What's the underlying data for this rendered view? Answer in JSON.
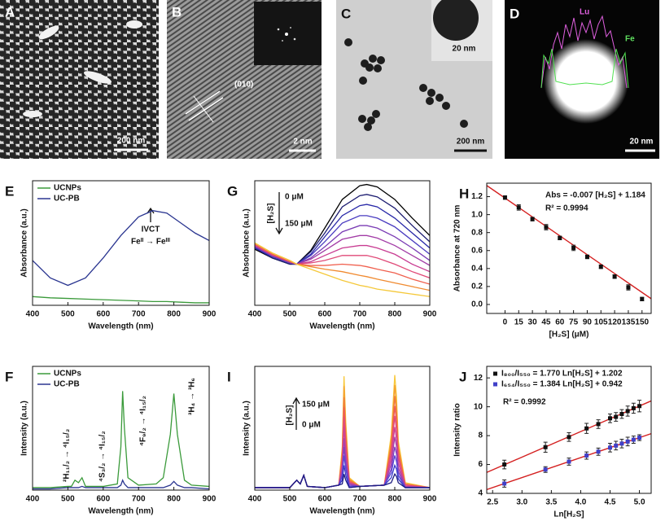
{
  "images": [
    {
      "label": "A",
      "scale": "200 nm"
    },
    {
      "label": "B",
      "scale": "2 nm",
      "annotation": "(010)"
    },
    {
      "label": "C",
      "scale": "200 nm",
      "inset_scale": "20 nm"
    },
    {
      "label": "D",
      "scale": "20 nm",
      "lines": [
        "Lu",
        "Fe"
      ]
    }
  ],
  "chart_data": [
    {
      "type": "line",
      "panel": "E",
      "xlabel": "Wavelength (nm)",
      "ylabel": "Absorbance (a.u.)",
      "xlim": [
        400,
        900
      ],
      "xticks": [
        400,
        500,
        600,
        700,
        800,
        900
      ],
      "ylim": [
        0,
        1
      ],
      "legend": "upper left",
      "annotations": [
        "IVCT",
        "Feᴵᴵ → Feᴵᴵᴵ"
      ],
      "x": [
        400,
        450,
        500,
        550,
        600,
        650,
        700,
        740,
        780,
        820,
        860,
        900
      ],
      "series": [
        {
          "name": "UCNPs",
          "color": "#3a9a3a",
          "values": [
            0.07,
            0.06,
            0.055,
            0.05,
            0.045,
            0.04,
            0.035,
            0.03,
            0.03,
            0.025,
            0.02,
            0.02
          ]
        },
        {
          "name": "UC-PB",
          "color": "#2a3590",
          "values": [
            0.36,
            0.22,
            0.16,
            0.22,
            0.38,
            0.56,
            0.71,
            0.76,
            0.74,
            0.66,
            0.58,
            0.52
          ]
        }
      ]
    },
    {
      "type": "line",
      "panel": "F",
      "xlabel": "Wavelength (nm)",
      "ylabel": "Intensity (a.u.)",
      "xlim": [
        400,
        900
      ],
      "xticks": [
        400,
        500,
        600,
        700,
        800,
        900
      ],
      "ylim": [
        0,
        1
      ],
      "legend": "upper left",
      "annotations": [
        "²H₁₁/₂ → ⁴I₁₅/₂",
        "⁴S₃/₂ → ⁴I₁₅/₂",
        "⁴F₉/₂ → ⁴I₁₅/₂",
        "³H₄ → ³H₆"
      ],
      "x": [
        400,
        450,
        500,
        510,
        520,
        530,
        540,
        550,
        560,
        600,
        640,
        650,
        655,
        660,
        670,
        700,
        750,
        770,
        790,
        800,
        810,
        830,
        850,
        900
      ],
      "series": [
        {
          "name": "UCNPs",
          "color": "#3a9a3a",
          "values": [
            0.02,
            0.02,
            0.03,
            0.03,
            0.08,
            0.06,
            0.1,
            0.03,
            0.03,
            0.03,
            0.05,
            0.35,
            0.8,
            0.5,
            0.1,
            0.04,
            0.05,
            0.1,
            0.45,
            0.78,
            0.45,
            0.08,
            0.04,
            0.03
          ]
        },
        {
          "name": "UC-PB",
          "color": "#2a3590",
          "values": [
            0.01,
            0.01,
            0.02,
            0.02,
            0.02,
            0.02,
            0.03,
            0.02,
            0.02,
            0.02,
            0.02,
            0.04,
            0.08,
            0.05,
            0.02,
            0.02,
            0.02,
            0.02,
            0.04,
            0.07,
            0.04,
            0.02,
            0.02,
            0.01
          ]
        }
      ]
    },
    {
      "type": "line",
      "panel": "G",
      "xlabel": "Wavelength (nm)",
      "ylabel": "Absorbance (a.u.)",
      "xlim": [
        400,
        900
      ],
      "xticks": [
        400,
        500,
        600,
        700,
        800,
        900
      ],
      "ylim": [
        0,
        1
      ],
      "annotations": [
        "[H₂S]",
        "0 μM",
        "150 μM"
      ],
      "x": [
        400,
        450,
        500,
        520,
        560,
        600,
        650,
        700,
        720,
        750,
        800,
        850,
        900
      ],
      "series": [
        {
          "color": "#000000",
          "values": [
            0.45,
            0.38,
            0.33,
            0.33,
            0.44,
            0.62,
            0.85,
            0.96,
            0.97,
            0.95,
            0.85,
            0.7,
            0.56
          ]
        },
        {
          "color": "#1c1c70",
          "values": [
            0.46,
            0.38,
            0.33,
            0.33,
            0.43,
            0.58,
            0.79,
            0.88,
            0.89,
            0.87,
            0.78,
            0.64,
            0.51
          ]
        },
        {
          "color": "#2828a8",
          "values": [
            0.46,
            0.39,
            0.34,
            0.33,
            0.41,
            0.55,
            0.72,
            0.8,
            0.81,
            0.79,
            0.7,
            0.58,
            0.46
          ]
        },
        {
          "color": "#4a3cc0",
          "values": [
            0.47,
            0.39,
            0.34,
            0.33,
            0.4,
            0.51,
            0.66,
            0.72,
            0.72,
            0.7,
            0.63,
            0.52,
            0.41
          ]
        },
        {
          "color": "#7a3cb4",
          "values": [
            0.47,
            0.4,
            0.34,
            0.33,
            0.38,
            0.47,
            0.59,
            0.64,
            0.64,
            0.62,
            0.55,
            0.46,
            0.36
          ]
        },
        {
          "color": "#a23ca6",
          "values": [
            0.48,
            0.4,
            0.35,
            0.33,
            0.37,
            0.44,
            0.53,
            0.56,
            0.56,
            0.54,
            0.48,
            0.4,
            0.32
          ]
        },
        {
          "color": "#c83c92",
          "values": [
            0.48,
            0.4,
            0.35,
            0.33,
            0.35,
            0.4,
            0.46,
            0.48,
            0.48,
            0.46,
            0.41,
            0.33,
            0.27
          ]
        },
        {
          "color": "#e04a78",
          "values": [
            0.49,
            0.41,
            0.35,
            0.33,
            0.34,
            0.36,
            0.4,
            0.4,
            0.4,
            0.38,
            0.33,
            0.27,
            0.22
          ]
        },
        {
          "color": "#f0604e",
          "values": [
            0.49,
            0.41,
            0.35,
            0.33,
            0.32,
            0.32,
            0.33,
            0.32,
            0.31,
            0.29,
            0.26,
            0.21,
            0.17
          ]
        },
        {
          "color": "#f08a30",
          "values": [
            0.5,
            0.42,
            0.36,
            0.33,
            0.31,
            0.29,
            0.27,
            0.24,
            0.23,
            0.21,
            0.18,
            0.15,
            0.12
          ]
        },
        {
          "color": "#f5c83a",
          "values": [
            0.5,
            0.42,
            0.36,
            0.33,
            0.29,
            0.25,
            0.2,
            0.16,
            0.15,
            0.13,
            0.11,
            0.09,
            0.07
          ]
        }
      ]
    },
    {
      "type": "scatter",
      "panel": "H",
      "xlabel": "[H₂S] (μM)",
      "ylabel": "Absorbance at 720 nm",
      "xlim": [
        -20,
        160
      ],
      "xticks": [
        0,
        15,
        30,
        45,
        60,
        75,
        90,
        105,
        120,
        135,
        150
      ],
      "ylim": [
        -0.1,
        1.35
      ],
      "yticks": [
        {
          "value": 0,
          "label": "0.0"
        },
        0.2,
        0.4,
        0.6,
        0.8,
        {
          "value": 1,
          "label": "1.0"
        },
        1.2
      ],
      "annotations": [
        "Abs = -0.007 [H₂S] + 1.184",
        "R² = 0.9994"
      ],
      "x": [
        0,
        15,
        30,
        45,
        60,
        75,
        90,
        105,
        120,
        135,
        150
      ],
      "series": [
        {
          "color": "#111111",
          "values": [
            1.19,
            1.08,
            0.95,
            0.86,
            0.74,
            0.63,
            0.53,
            0.42,
            0.31,
            0.19,
            0.06
          ],
          "errors": [
            0.02,
            0.03,
            0.02,
            0.03,
            0.02,
            0.03,
            0.02,
            0.02,
            0.02,
            0.03,
            0.02
          ],
          "fit": {
            "slope": -0.007,
            "intercept": 1.184,
            "color": "#d42020"
          }
        }
      ]
    },
    {
      "type": "line",
      "panel": "I",
      "xlabel": "Wavelength (nm)",
      "ylabel": "Intensity (a.u.)",
      "xlim": [
        400,
        900
      ],
      "xticks": [
        400,
        500,
        600,
        700,
        800,
        900
      ],
      "ylim": [
        0,
        1
      ],
      "annotations": [
        "150 μM",
        "[H₂S]",
        "0 μM"
      ],
      "x": [
        400,
        500,
        520,
        530,
        540,
        550,
        600,
        640,
        650,
        655,
        660,
        670,
        700,
        770,
        790,
        800,
        805,
        810,
        830,
        900
      ],
      "series": [
        {
          "color": "#f8c83a",
          "values": [
            0.02,
            0.02,
            0.08,
            0.05,
            0.12,
            0.03,
            0.02,
            0.04,
            0.35,
            0.92,
            0.55,
            0.1,
            0.03,
            0.04,
            0.45,
            0.93,
            0.75,
            0.4,
            0.06,
            0.02
          ]
        },
        {
          "color": "#f5a030",
          "values": [
            0.02,
            0.02,
            0.08,
            0.05,
            0.12,
            0.03,
            0.02,
            0.04,
            0.32,
            0.84,
            0.5,
            0.09,
            0.03,
            0.04,
            0.41,
            0.85,
            0.68,
            0.36,
            0.05,
            0.02
          ]
        },
        {
          "color": "#f07a3a",
          "values": [
            0.02,
            0.02,
            0.08,
            0.05,
            0.12,
            0.03,
            0.02,
            0.04,
            0.29,
            0.75,
            0.45,
            0.08,
            0.03,
            0.04,
            0.37,
            0.76,
            0.62,
            0.33,
            0.05,
            0.02
          ]
        },
        {
          "color": "#ee5a5a",
          "values": [
            0.02,
            0.02,
            0.08,
            0.05,
            0.12,
            0.03,
            0.02,
            0.04,
            0.26,
            0.67,
            0.4,
            0.07,
            0.03,
            0.04,
            0.33,
            0.68,
            0.55,
            0.29,
            0.04,
            0.02
          ]
        },
        {
          "color": "#e04a80",
          "values": [
            0.02,
            0.02,
            0.08,
            0.05,
            0.12,
            0.03,
            0.02,
            0.04,
            0.22,
            0.59,
            0.35,
            0.06,
            0.03,
            0.04,
            0.29,
            0.6,
            0.48,
            0.26,
            0.04,
            0.02
          ]
        },
        {
          "color": "#cc4496",
          "values": [
            0.02,
            0.02,
            0.08,
            0.05,
            0.12,
            0.03,
            0.02,
            0.04,
            0.19,
            0.51,
            0.3,
            0.06,
            0.03,
            0.04,
            0.25,
            0.51,
            0.41,
            0.22,
            0.03,
            0.02
          ]
        },
        {
          "color": "#a842aa",
          "values": [
            0.02,
            0.02,
            0.08,
            0.05,
            0.12,
            0.03,
            0.02,
            0.04,
            0.16,
            0.42,
            0.25,
            0.05,
            0.03,
            0.04,
            0.21,
            0.43,
            0.35,
            0.18,
            0.03,
            0.02
          ]
        },
        {
          "color": "#8040c0",
          "values": [
            0.02,
            0.02,
            0.08,
            0.05,
            0.12,
            0.03,
            0.02,
            0.04,
            0.13,
            0.35,
            0.21,
            0.04,
            0.03,
            0.04,
            0.17,
            0.35,
            0.29,
            0.15,
            0.02,
            0.02
          ]
        },
        {
          "color": "#5a48d6",
          "values": [
            0.02,
            0.02,
            0.08,
            0.05,
            0.12,
            0.03,
            0.02,
            0.04,
            0.11,
            0.28,
            0.17,
            0.03,
            0.03,
            0.04,
            0.14,
            0.28,
            0.23,
            0.12,
            0.02,
            0.02
          ]
        },
        {
          "color": "#3838c8",
          "values": [
            0.02,
            0.02,
            0.08,
            0.05,
            0.12,
            0.03,
            0.02,
            0.04,
            0.08,
            0.2,
            0.12,
            0.02,
            0.03,
            0.04,
            0.1,
            0.2,
            0.17,
            0.09,
            0.02,
            0.02
          ]
        },
        {
          "color": "#1c1c80",
          "values": [
            0.02,
            0.02,
            0.08,
            0.05,
            0.12,
            0.03,
            0.02,
            0.04,
            0.05,
            0.13,
            0.08,
            0.02,
            0.03,
            0.04,
            0.06,
            0.13,
            0.11,
            0.06,
            0.02,
            0.02
          ]
        }
      ]
    },
    {
      "type": "scatter",
      "panel": "J",
      "xlabel": "Ln[H₂S]",
      "ylabel": "Intensity ratio",
      "xlim": [
        2.4,
        5.2
      ],
      "xticks": [
        2.5,
        {
          "value": 3,
          "label": "3.0"
        },
        3.5,
        {
          "value": 4,
          "label": "4.0"
        },
        4.5,
        {
          "value": 5,
          "label": "5.0"
        }
      ],
      "ylim": [
        4,
        12.8
      ],
      "yticks": [
        4,
        6,
        8,
        10,
        12
      ],
      "legend": "upper left",
      "annotations": [
        "R² = 0.9992"
      ],
      "x": [
        2.7,
        3.4,
        3.8,
        4.1,
        4.3,
        4.5,
        4.6,
        4.7,
        4.8,
        4.9,
        5.0
      ],
      "series": [
        {
          "name": "I₈₀₀/I₅₅₀ = 1.770 Ln[H₂S] + 1.202",
          "color": "#111111",
          "values": [
            6.0,
            7.2,
            7.9,
            8.5,
            8.8,
            9.2,
            9.3,
            9.5,
            9.7,
            9.9,
            10.05
          ],
          "errors": [
            0.3,
            0.35,
            0.3,
            0.35,
            0.3,
            0.3,
            0.3,
            0.3,
            0.35,
            0.35,
            0.4
          ],
          "fit": {
            "slope": 1.77,
            "intercept": 1.202,
            "color": "#d42020"
          }
        },
        {
          "name": "I₆₅₄/I₅₅₀ = 1.384 Ln[H₂S] + 0.942",
          "color": "#4040c8",
          "values": [
            4.68,
            5.65,
            6.2,
            6.62,
            6.89,
            7.17,
            7.31,
            7.45,
            7.59,
            7.72,
            7.86
          ],
          "errors": [
            0.25,
            0.2,
            0.25,
            0.25,
            0.25,
            0.3,
            0.3,
            0.3,
            0.3,
            0.25,
            0.2
          ],
          "fit": {
            "slope": 1.384,
            "intercept": 0.942,
            "color": "#d42020"
          }
        }
      ]
    }
  ]
}
